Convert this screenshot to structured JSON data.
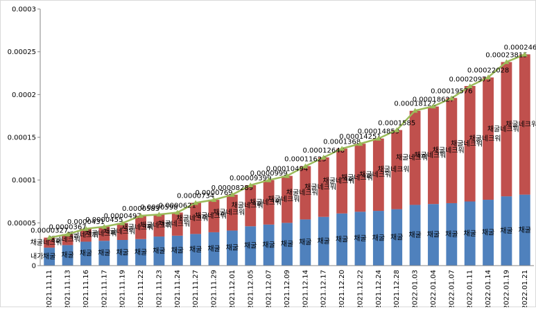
{
  "chart_data": {
    "type": "bar",
    "categories": [
      "2021.11.11",
      "2021.11.13",
      "2021.11.16",
      "2021.11.17",
      "2021.11.19",
      "2021.11.22",
      "2021.11.23",
      "2021.11.24",
      "2021.11.27",
      "2021.11.29",
      "2021.12.01",
      "2021.12.05",
      "2021.12.07",
      "2021.12.09",
      "2021.12.14",
      "2021.12.17",
      "2021.12.20",
      "2021.12.22",
      "2021.12.24",
      "2021.12.28",
      "2022.01.03",
      "2022.01.04",
      "2022.01.07",
      "2022.01.11",
      "2022.01.14",
      "2022.01.19",
      "2022.01.21"
    ],
    "series": [
      {
        "name": "채굴",
        "color": "#4f81bd",
        "values": [
          2.1e-05,
          2.4e-05,
          2.8e-05,
          2.9e-05,
          3e-05,
          3.1e-05,
          3.4e-05,
          3.5e-05,
          3.7e-05,
          3.9e-05,
          4.1e-05,
          4.6e-05,
          4.8e-05,
          5e-05,
          5.4e-05,
          5.7e-05,
          6.1e-05,
          6.3e-05,
          6.4e-05,
          6.6e-05,
          7.1e-05,
          7.2e-05,
          7.3e-05,
          7.5e-05,
          7.7e-05,
          8.1e-05,
          8.3e-05
        ]
      },
      {
        "name": "채굴네크워크",
        "color": "#c0504d",
        "values": [
          1.17e-05,
          1.27e-05,
          1.51e-05,
          1.65e-05,
          1.97e-05,
          2.73e-05,
          2.58e-05,
          2.71e-05,
          3.64e-05,
          3.79e-05,
          4.19e-05,
          4.8e-05,
          5.19e-05,
          5.49e-05,
          6.23e-05,
          6.95e-05,
          7.58e-05,
          7.95e-05,
          8.46e-05,
          9.25e-05,
          0.00011,
          0.000114,
          0.000123,
          0.000135,
          0.000143,
          0.000157,
          0.000164
        ]
      },
      {
        "type": "line",
        "color": "#9bbb59",
        "values": [
          3.27e-05,
          3.67e-05,
          4.31e-05,
          4.55e-05,
          4.97e-05,
          5.83e-05,
          5.98e-05,
          6.21e-05,
          7.34e-05,
          7.69e-05,
          8.289e-05,
          9.399e-05,
          9.99e-05,
          0.00010494,
          0.00011625,
          0.00012646,
          0.0001368,
          0.00014251,
          0.00014859,
          0.0001585,
          0.00018122,
          0.00018627,
          0.00019576,
          0.00020975,
          0.00022028,
          0.00023815,
          0.00024692
        ]
      }
    ],
    "annotation": "내가",
    "ylim": [
      0,
      0.0003
    ],
    "yticks": [
      0,
      5e-05,
      0.0001,
      0.00015,
      0.0002,
      0.00025,
      0.0003
    ]
  }
}
